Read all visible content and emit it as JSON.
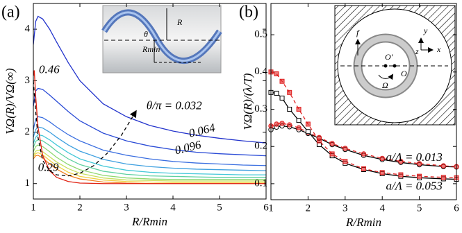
{
  "chart_data": [
    {
      "type": "line",
      "panel_label": "(a)",
      "xlabel": "R/Rmin",
      "ylabel": "VΩ(R)/VΩ(∞)",
      "xlim": [
        1,
        6
      ],
      "ylim": [
        0.7,
        4.5
      ],
      "xticks": [
        1,
        2,
        3,
        4,
        5,
        6
      ],
      "yticks": [
        1,
        2,
        3,
        4
      ],
      "x": [
        1,
        1.05,
        1.1,
        1.2,
        1.35,
        1.5,
        1.75,
        2,
        2.5,
        3,
        3.5,
        4,
        4.5,
        5,
        5.5,
        6
      ],
      "series": [
        {
          "color": "#2233cc",
          "values": [
            3.7,
            4.15,
            4.25,
            4.2,
            4.0,
            3.75,
            3.35,
            3.0,
            2.55,
            2.3,
            2.13,
            2.02,
            1.94,
            1.88,
            1.83,
            1.79
          ]
        },
        {
          "color": "#2a4bd6",
          "values": [
            2.5,
            2.8,
            2.85,
            2.83,
            2.72,
            2.6,
            2.4,
            2.22,
            1.98,
            1.83,
            1.73,
            1.66,
            1.61,
            1.58,
            1.56,
            1.54
          ]
        },
        {
          "color": "#3a6ee0",
          "values": [
            2.05,
            2.25,
            2.3,
            2.28,
            2.2,
            2.1,
            1.95,
            1.83,
            1.65,
            1.55,
            1.48,
            1.43,
            1.4,
            1.38,
            1.36,
            1.35
          ]
        },
        {
          "color": "#3fa0e0",
          "values": [
            1.9,
            2.05,
            2.1,
            2.08,
            2.0,
            1.9,
            1.75,
            1.63,
            1.47,
            1.38,
            1.33,
            1.3,
            1.28,
            1.27,
            1.26,
            1.25
          ]
        },
        {
          "color": "#44c8d8",
          "values": [
            1.78,
            1.9,
            1.95,
            1.93,
            1.85,
            1.75,
            1.6,
            1.48,
            1.34,
            1.26,
            1.22,
            1.2,
            1.19,
            1.18,
            1.17,
            1.17
          ]
        },
        {
          "color": "#5fd0a0",
          "values": [
            1.7,
            1.82,
            1.85,
            1.83,
            1.74,
            1.63,
            1.48,
            1.37,
            1.24,
            1.18,
            1.15,
            1.14,
            1.13,
            1.12,
            1.12,
            1.12
          ]
        },
        {
          "color": "#8fd870",
          "values": [
            1.62,
            1.72,
            1.75,
            1.72,
            1.62,
            1.51,
            1.37,
            1.27,
            1.16,
            1.11,
            1.09,
            1.08,
            1.08,
            1.08,
            1.08,
            1.08
          ]
        },
        {
          "color": "#c8e060",
          "values": [
            1.55,
            1.63,
            1.65,
            1.62,
            1.52,
            1.42,
            1.29,
            1.2,
            1.11,
            1.07,
            1.06,
            1.05,
            1.05,
            1.05,
            1.05,
            1.05
          ]
        },
        {
          "color": "#f0d040",
          "values": [
            1.52,
            1.58,
            1.6,
            1.56,
            1.45,
            1.35,
            1.22,
            1.14,
            1.07,
            1.04,
            1.03,
            1.02,
            1.02,
            1.02,
            1.02,
            1.02
          ]
        },
        {
          "color": "#f08020",
          "values": [
            1.48,
            1.54,
            1.55,
            1.5,
            1.38,
            1.28,
            1.16,
            1.09,
            1.03,
            1.01,
            1.0,
            1.0,
            1.0,
            1.0,
            1.0,
            1.0
          ]
        },
        {
          "color": "#e02010",
          "x": [
            1.01,
            1.02,
            1.05,
            1.1,
            1.2,
            1.35,
            1.5,
            1.75,
            2,
            2.5,
            3,
            4,
            5,
            6
          ],
          "values": [
            3.1,
            3.2,
            2.7,
            2.1,
            1.55,
            1.25,
            1.12,
            1.04,
            1.01,
            1.0,
            1.0,
            1.0,
            1.0,
            1.0
          ]
        },
        {
          "color": "#000000",
          "dash": true,
          "arrow": true,
          "x": [
            1.0,
            1.05,
            1.1,
            1.2,
            1.35,
            1.5,
            1.75,
            2,
            2.3,
            2.6,
            2.9,
            3.2
          ],
          "values": [
            3.0,
            2.4,
            1.9,
            1.45,
            1.25,
            1.17,
            1.15,
            1.2,
            1.35,
            1.6,
            1.95,
            2.4
          ]
        }
      ],
      "annotations": [
        "θ/π = 0.032",
        "0.064",
        "0.096",
        "0.46",
        "0.29"
      ],
      "inset_labels": [
        "R",
        "θ",
        "Rmin"
      ]
    },
    {
      "type": "line",
      "panel_label": "(b)",
      "xlabel": "R/Rmin",
      "ylabel": "VΩ(R)/(λ/T)",
      "xlim": [
        1,
        6
      ],
      "ylim": [
        0.057,
        0.584
      ],
      "xticks": [
        1,
        2,
        3,
        4,
        5,
        6
      ],
      "yticks": [
        0.1,
        0.2,
        0.3,
        0.4,
        0.5
      ],
      "x": [
        1,
        1.15,
        1.3,
        1.5,
        1.75,
        2,
        2.3,
        2.65,
        3,
        3.5,
        4,
        4.5,
        5,
        5.65,
        6
      ],
      "series": [
        {
          "color": "#000000",
          "marker": "circle",
          "values": [
            0.245,
            0.252,
            0.255,
            0.253,
            0.245,
            0.235,
            0.222,
            0.205,
            0.192,
            0.176,
            0.165,
            0.157,
            0.151,
            0.146,
            0.145
          ]
        },
        {
          "color": "#e02020",
          "marker": "circle",
          "dash": true,
          "values": [
            0.255,
            0.26,
            0.262,
            0.258,
            0.25,
            0.238,
            0.224,
            0.208,
            0.195,
            0.18,
            0.168,
            0.16,
            0.154,
            0.148,
            0.146
          ]
        },
        {
          "color": "#000000",
          "marker": "square",
          "values": [
            0.345,
            0.343,
            0.33,
            0.3,
            0.27,
            0.24,
            0.205,
            0.175,
            0.155,
            0.138,
            0.127,
            0.12,
            0.116,
            0.113,
            0.112
          ]
        },
        {
          "color": "#e02020",
          "marker": "square",
          "dash": true,
          "values": [
            0.4,
            0.395,
            0.375,
            0.345,
            0.3,
            0.26,
            0.215,
            0.18,
            0.16,
            0.14,
            0.13,
            0.124,
            0.12,
            0.117,
            0.116
          ]
        }
      ],
      "annotations": [
        "a/Λ = 0.013",
        "a/Λ = 0.053"
      ],
      "inset_labels": [
        "f",
        "O′",
        "O",
        "Ω",
        "x",
        "y",
        "z"
      ]
    }
  ]
}
